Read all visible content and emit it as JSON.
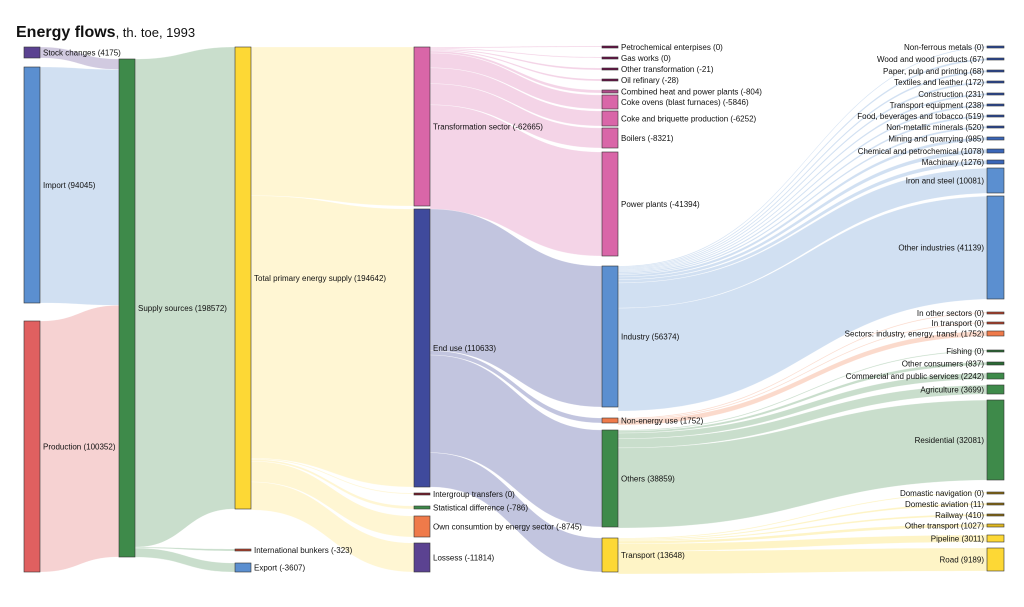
{
  "title": {
    "main": "Energy flows",
    "subtitle": ", th. toe, 1993"
  },
  "chart_data": {
    "type": "sankey",
    "title": "Energy flows, th. toe, 1993",
    "unit": "th. toe",
    "year": 1993,
    "nodes": [
      {
        "id": "stock",
        "label": "Stock changes (4175)",
        "value": 4175,
        "col": 0,
        "color": "#5b4291"
      },
      {
        "id": "import",
        "label": "Import (94045)",
        "value": 94045,
        "col": 0,
        "color": "#5b8fd0"
      },
      {
        "id": "production",
        "label": "Production (100352)",
        "value": 100352,
        "col": 0,
        "color": "#e06060"
      },
      {
        "id": "supply",
        "label": "Supply sources (198572)",
        "value": 198572,
        "col": 1,
        "color": "#3e8a4a"
      },
      {
        "id": "tpes",
        "label": "Total primary energy supply (194642)",
        "value": 194642,
        "col": 2,
        "color": "#fdd835"
      },
      {
        "id": "bunkers",
        "label": "International bunkers (-323)",
        "value": 323,
        "col": 2,
        "color": "#b5402a"
      },
      {
        "id": "export",
        "label": "Export (-3607)",
        "value": 3607,
        "col": 2,
        "color": "#5b8fd0"
      },
      {
        "id": "transf",
        "label": "Transformation sector (-62665)",
        "value": 62665,
        "col": 3,
        "color": "#d966a8"
      },
      {
        "id": "enduse",
        "label": "End use (110633)",
        "value": 110633,
        "col": 3,
        "color": "#3f4a9c"
      },
      {
        "id": "intergroup",
        "label": "Intergroup transfers (0)",
        "value": 0,
        "col": 3,
        "color": "#7a1a2a"
      },
      {
        "id": "statdiff",
        "label": "Statistical difference (-786)",
        "value": 786,
        "col": 3,
        "color": "#3e8a4a"
      },
      {
        "id": "own",
        "label": "Own consumtion by energy sector (-8745)",
        "value": 8745,
        "col": 3,
        "color": "#ef7a4a"
      },
      {
        "id": "losses",
        "label": "Lossess (-11814)",
        "value": 11814,
        "col": 3,
        "color": "#5b4291"
      },
      {
        "id": "petro",
        "label": "Petrochemical enterpises (0)",
        "value": 0,
        "col": 4,
        "color": "#6a1046"
      },
      {
        "id": "gasworks",
        "label": "Gas works (0)",
        "value": 0,
        "col": 4,
        "color": "#6a1046"
      },
      {
        "id": "othertr",
        "label": "Other transformation (-21)",
        "value": 21,
        "col": 4,
        "color": "#6a1046"
      },
      {
        "id": "oilref",
        "label": "Oil refinary (-28)",
        "value": 28,
        "col": 4,
        "color": "#6a1046"
      },
      {
        "id": "chp",
        "label": "Combined heat and power plants (-804)",
        "value": 804,
        "col": 4,
        "color": "#b04c8a"
      },
      {
        "id": "cokeov",
        "label": "Coke ovens (blast furnaces) (-5846)",
        "value": 5846,
        "col": 4,
        "color": "#d966a8"
      },
      {
        "id": "cokebr",
        "label": "Coke and briquette production (-6252)",
        "value": 6252,
        "col": 4,
        "color": "#d966a8"
      },
      {
        "id": "boilers",
        "label": "Boilers (-8321)",
        "value": 8321,
        "col": 4,
        "color": "#d966a8"
      },
      {
        "id": "power",
        "label": "Power plants (-41394)",
        "value": 41394,
        "col": 4,
        "color": "#d966a8"
      },
      {
        "id": "industry",
        "label": "Industry (56374)",
        "value": 56374,
        "col": 4,
        "color": "#5b8fd0"
      },
      {
        "id": "nonenergy",
        "label": "Non-energy use (1752)",
        "value": 1752,
        "col": 4,
        "color": "#ef7a4a"
      },
      {
        "id": "others",
        "label": "Others (38859)",
        "value": 38859,
        "col": 4,
        "color": "#3e8a4a"
      },
      {
        "id": "transport",
        "label": "Transport (13648)",
        "value": 13648,
        "col": 4,
        "color": "#fdd835"
      },
      {
        "id": "nonferrous",
        "label": "Non-ferrous metals (0)",
        "value": 0,
        "col": 5,
        "color": "#2a4a9c"
      },
      {
        "id": "wood",
        "label": "Wood and wood products (67)",
        "value": 67,
        "col": 5,
        "color": "#2a4a9c"
      },
      {
        "id": "paper",
        "label": "Paper, pulp and printing (68)",
        "value": 68,
        "col": 5,
        "color": "#2a4a9c"
      },
      {
        "id": "textiles",
        "label": "Textiles and leather (172)",
        "value": 172,
        "col": 5,
        "color": "#2a4a9c"
      },
      {
        "id": "construction",
        "label": "Construction (231)",
        "value": 231,
        "col": 5,
        "color": "#2a4a9c"
      },
      {
        "id": "transpeq",
        "label": "Transport equipment (238)",
        "value": 238,
        "col": 5,
        "color": "#2a4a9c"
      },
      {
        "id": "food",
        "label": "Food, beverages and tobacco (519)",
        "value": 519,
        "col": 5,
        "color": "#2a4a9c"
      },
      {
        "id": "nonmetal",
        "label": "Non-metallic minerals (520)",
        "value": 520,
        "col": 5,
        "color": "#2a4a9c"
      },
      {
        "id": "mining",
        "label": "Mining and quarrying (985)",
        "value": 985,
        "col": 5,
        "color": "#3a66b8"
      },
      {
        "id": "chemical",
        "label": "Chemical and petrochemical (1078)",
        "value": 1078,
        "col": 5,
        "color": "#3a66b8"
      },
      {
        "id": "machinary",
        "label": "Machinary (1276)",
        "value": 1276,
        "col": 5,
        "color": "#3a66b8"
      },
      {
        "id": "ironsteel",
        "label": "Iron and steel (10081)",
        "value": 10081,
        "col": 5,
        "color": "#5b8fd0"
      },
      {
        "id": "otherind",
        "label": "Other industries (41139)",
        "value": 41139,
        "col": 5,
        "color": "#5b8fd0"
      },
      {
        "id": "inother",
        "label": "In other sectors (0)",
        "value": 0,
        "col": 5,
        "color": "#b5402a"
      },
      {
        "id": "intransport",
        "label": "In transport (0)",
        "value": 0,
        "col": 5,
        "color": "#b5402a"
      },
      {
        "id": "sectors",
        "label": "Sectors: industry, energy, transf. (1752)",
        "value": 1752,
        "col": 5,
        "color": "#ef7a4a"
      },
      {
        "id": "fishing",
        "label": "Fishing (0)",
        "value": 0,
        "col": 5,
        "color": "#2a6a34"
      },
      {
        "id": "othercons",
        "label": "Other consumers (837)",
        "value": 837,
        "col": 5,
        "color": "#2a6a34"
      },
      {
        "id": "commercial",
        "label": "Commercial and public services (2242)",
        "value": 2242,
        "col": 5,
        "color": "#3e8a4a"
      },
      {
        "id": "agriculture",
        "label": "Agriculture (3699)",
        "value": 3699,
        "col": 5,
        "color": "#3e8a4a"
      },
      {
        "id": "residential",
        "label": "Residential (32081)",
        "value": 32081,
        "col": 5,
        "color": "#3e8a4a"
      },
      {
        "id": "domnav",
        "label": "Domastic navigation (0)",
        "value": 0,
        "col": 5,
        "color": "#8a6a10"
      },
      {
        "id": "domav",
        "label": "Domestic aviation (11)",
        "value": 11,
        "col": 5,
        "color": "#8a6a10"
      },
      {
        "id": "railway",
        "label": "Railway (410)",
        "value": 410,
        "col": 5,
        "color": "#8a6a10"
      },
      {
        "id": "othertransp",
        "label": "Other transport (1027)",
        "value": 1027,
        "col": 5,
        "color": "#e0b820"
      },
      {
        "id": "pipeline",
        "label": "Pipeline (3011)",
        "value": 3011,
        "col": 5,
        "color": "#fdd835"
      },
      {
        "id": "road",
        "label": "Road (9189)",
        "value": 9189,
        "col": 5,
        "color": "#fdd835"
      }
    ],
    "links": [
      {
        "source": "stock",
        "target": "supply",
        "value": 4175
      },
      {
        "source": "import",
        "target": "supply",
        "value": 94045
      },
      {
        "source": "production",
        "target": "supply",
        "value": 100352
      },
      {
        "source": "supply",
        "target": "tpes",
        "value": 194642
      },
      {
        "source": "supply",
        "target": "bunkers",
        "value": 323
      },
      {
        "source": "supply",
        "target": "export",
        "value": 3607
      },
      {
        "source": "tpes",
        "target": "transf",
        "value": 62665
      },
      {
        "source": "tpes",
        "target": "enduse",
        "value": 110633
      },
      {
        "source": "tpes",
        "target": "intergroup",
        "value": 0
      },
      {
        "source": "tpes",
        "target": "statdiff",
        "value": 786
      },
      {
        "source": "tpes",
        "target": "own",
        "value": 8745
      },
      {
        "source": "tpes",
        "target": "losses",
        "value": 11814
      },
      {
        "source": "transf",
        "target": "petro",
        "value": 0
      },
      {
        "source": "transf",
        "target": "gasworks",
        "value": 0
      },
      {
        "source": "transf",
        "target": "othertr",
        "value": 21
      },
      {
        "source": "transf",
        "target": "oilref",
        "value": 28
      },
      {
        "source": "transf",
        "target": "chp",
        "value": 804
      },
      {
        "source": "transf",
        "target": "cokeov",
        "value": 5846
      },
      {
        "source": "transf",
        "target": "cokebr",
        "value": 6252
      },
      {
        "source": "transf",
        "target": "boilers",
        "value": 8321
      },
      {
        "source": "transf",
        "target": "power",
        "value": 41394
      },
      {
        "source": "enduse",
        "target": "industry",
        "value": 56374
      },
      {
        "source": "enduse",
        "target": "nonenergy",
        "value": 1752
      },
      {
        "source": "enduse",
        "target": "others",
        "value": 38859
      },
      {
        "source": "enduse",
        "target": "transport",
        "value": 13648
      },
      {
        "source": "industry",
        "target": "nonferrous",
        "value": 0
      },
      {
        "source": "industry",
        "target": "wood",
        "value": 67
      },
      {
        "source": "industry",
        "target": "paper",
        "value": 68
      },
      {
        "source": "industry",
        "target": "textiles",
        "value": 172
      },
      {
        "source": "industry",
        "target": "construction",
        "value": 231
      },
      {
        "source": "industry",
        "target": "transpeq",
        "value": 238
      },
      {
        "source": "industry",
        "target": "food",
        "value": 519
      },
      {
        "source": "industry",
        "target": "nonmetal",
        "value": 520
      },
      {
        "source": "industry",
        "target": "mining",
        "value": 985
      },
      {
        "source": "industry",
        "target": "chemical",
        "value": 1078
      },
      {
        "source": "industry",
        "target": "machinary",
        "value": 1276
      },
      {
        "source": "industry",
        "target": "ironsteel",
        "value": 10081
      },
      {
        "source": "industry",
        "target": "otherind",
        "value": 41139
      },
      {
        "source": "nonenergy",
        "target": "inother",
        "value": 0
      },
      {
        "source": "nonenergy",
        "target": "intransport",
        "value": 0
      },
      {
        "source": "nonenergy",
        "target": "sectors",
        "value": 1752
      },
      {
        "source": "others",
        "target": "fishing",
        "value": 0
      },
      {
        "source": "others",
        "target": "othercons",
        "value": 837
      },
      {
        "source": "others",
        "target": "commercial",
        "value": 2242
      },
      {
        "source": "others",
        "target": "agriculture",
        "value": 3699
      },
      {
        "source": "others",
        "target": "residential",
        "value": 32081
      },
      {
        "source": "transport",
        "target": "domnav",
        "value": 0
      },
      {
        "source": "transport",
        "target": "domav",
        "value": 11
      },
      {
        "source": "transport",
        "target": "railway",
        "value": 410
      },
      {
        "source": "transport",
        "target": "othertransp",
        "value": 1027
      },
      {
        "source": "transport",
        "target": "pipeline",
        "value": 3011
      },
      {
        "source": "transport",
        "target": "road",
        "value": 9189
      }
    ]
  }
}
